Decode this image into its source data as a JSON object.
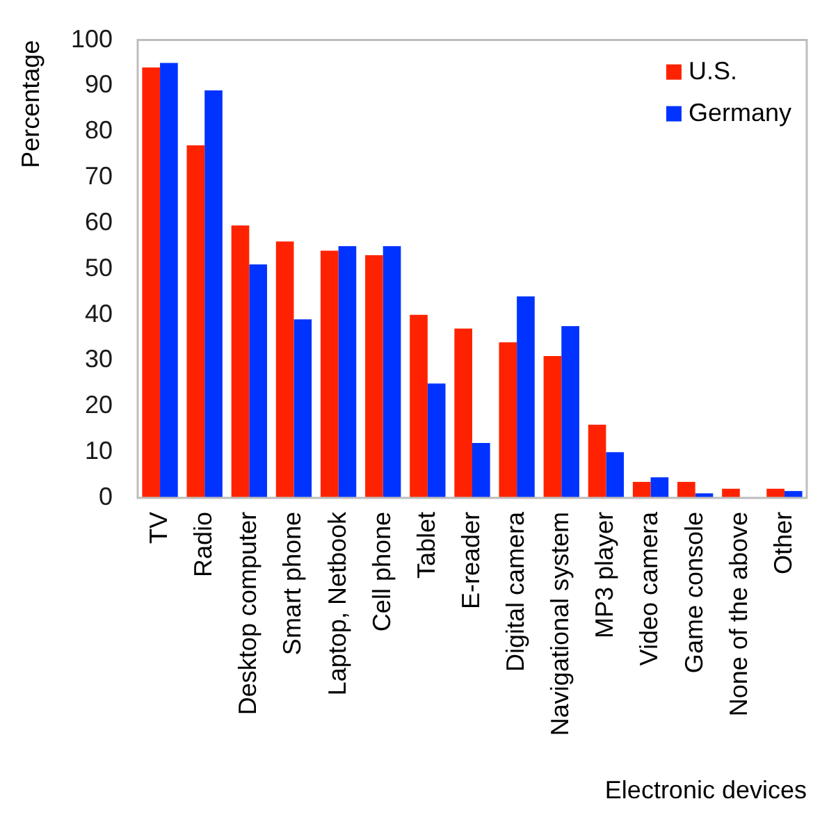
{
  "chart_data": {
    "type": "bar",
    "xlabel": "Electronic devices",
    "ylabel": "Percentage",
    "categories": [
      "TV",
      "Radio",
      "Desktop computer",
      "Smart phone",
      "Laptop, Netbook",
      "Cell phone",
      "Tablet",
      "E-reader",
      "Digital camera",
      "Navigational system",
      "MP3 player",
      "Video camera",
      "Game console",
      "None of the above",
      "Other"
    ],
    "series": [
      {
        "name": "U.S.",
        "color": "#ff2200",
        "values": [
          94,
          77,
          59.5,
          56,
          54,
          53,
          40,
          37,
          34,
          31,
          16,
          3.5,
          3.5,
          2,
          2
        ]
      },
      {
        "name": "Germany",
        "color": "#0033ff",
        "values": [
          95,
          89,
          51,
          39,
          55,
          55,
          25,
          12,
          44,
          37.5,
          10,
          4.5,
          1,
          0,
          1.5
        ]
      }
    ],
    "ylim": [
      0,
      100
    ],
    "yticks": [
      0,
      10,
      20,
      30,
      40,
      50,
      60,
      70,
      80,
      90,
      100
    ],
    "grid": false,
    "legend": "top right"
  }
}
